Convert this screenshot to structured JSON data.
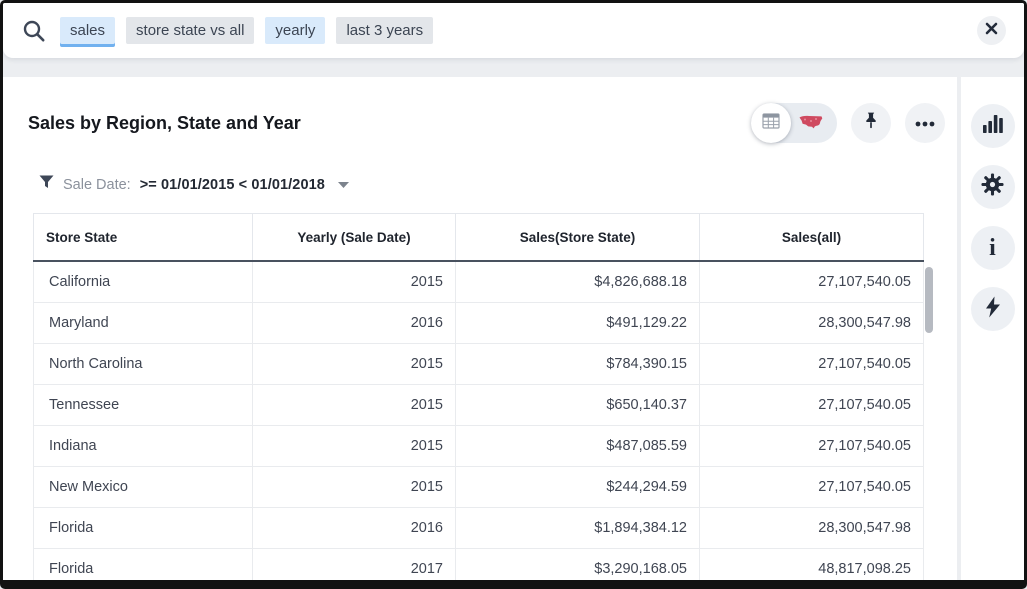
{
  "search_bar": {
    "tokens": [
      {
        "label": "sales",
        "style": "blue-active"
      },
      {
        "label": "store state vs all",
        "style": "gray"
      },
      {
        "label": "yearly",
        "style": "blue"
      },
      {
        "label": "last 3 years",
        "style": "gray"
      }
    ]
  },
  "answer": {
    "title": "Sales by Region, State and Year",
    "filter_label": "Sale Date:",
    "filter_value": ">= 01/01/2015 < 01/01/2018"
  },
  "table": {
    "columns": [
      {
        "label": "Store State",
        "header_align": "al",
        "cell_align": "al"
      },
      {
        "label": "Yearly (Sale Date)",
        "header_align": "ac",
        "cell_align": "ar"
      },
      {
        "label": "Sales(Store State)",
        "header_align": "ac",
        "cell_align": "ar"
      },
      {
        "label": "Sales(all)",
        "header_align": "ac",
        "cell_align": "ar"
      }
    ],
    "rows": [
      [
        "California",
        "2015",
        "$4,826,688.18",
        "27,107,540.05"
      ],
      [
        "Maryland",
        "2016",
        "$491,129.22",
        "28,300,547.98"
      ],
      [
        "North Carolina",
        "2015",
        "$784,390.15",
        "27,107,540.05"
      ],
      [
        "Tennessee",
        "2015",
        "$650,140.37",
        "27,107,540.05"
      ],
      [
        "Indiana",
        "2015",
        "$487,085.59",
        "27,107,540.05"
      ],
      [
        "New Mexico",
        "2015",
        "$244,294.59",
        "27,107,540.05"
      ],
      [
        "Florida",
        "2016",
        "$1,894,384.12",
        "28,300,547.98"
      ],
      [
        "Florida",
        "2017",
        "$3,290,168.05",
        "48,817,098.25"
      ]
    ]
  },
  "icons": {
    "search": "magnifier",
    "close": "x-in-circle",
    "filter": "funnel",
    "filter_caret": "triangle-down",
    "view_table": "table-grid",
    "view_map": "us-map-red",
    "pin": "pushpin",
    "more": "ellipsis",
    "sidebar": [
      "bar-chart",
      "gear",
      "info",
      "lightning-bolt"
    ]
  },
  "colors": {
    "accent_underline": "#71b1ef",
    "token_blue_bg": "#d9eafb",
    "token_gray_bg": "#e3e6ea",
    "map_red": "#cf4a60",
    "header_rule": "#49525f",
    "icon_dark": "#222a38",
    "frame_bg": "#eceef1"
  }
}
